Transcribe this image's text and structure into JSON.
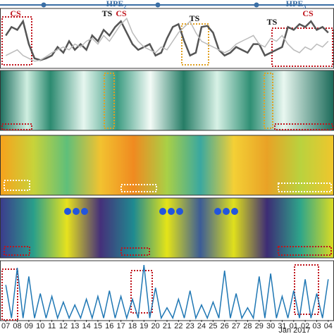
{
  "chart_data": [
    {
      "type": "line",
      "xlim": [
        -0.5,
        28.5
      ],
      "ylim": [
        0,
        100
      ],
      "annotations": [
        "CS",
        "TS",
        "CS",
        "TS",
        "TS",
        "CS"
      ],
      "periods": [
        {
          "text": "HPE",
          "sub": "2"
        },
        {
          "text": "HPE",
          "sub": "3"
        }
      ],
      "x": [
        0,
        0.5,
        1,
        1.5,
        2,
        2.5,
        3,
        3.5,
        4,
        4.5,
        5,
        5.5,
        6,
        6.5,
        7,
        7.5,
        8,
        8.5,
        9,
        9.5,
        10,
        10.5,
        11,
        11.5,
        12,
        12.5,
        13,
        13.5,
        14,
        14.5,
        15,
        15.5,
        16,
        16.5,
        17,
        17.5,
        18,
        18.5,
        19,
        19.5,
        20,
        20.5,
        21,
        21.5,
        22,
        22.5,
        23,
        23.5,
        24,
        24.5,
        25,
        25.5,
        26,
        26.5,
        27,
        27.5,
        28
      ],
      "series": [
        {
          "color": "#555555",
          "values": [
            55,
            70,
            65,
            80,
            40,
            15,
            12,
            15,
            20,
            35,
            25,
            45,
            30,
            40,
            30,
            55,
            45,
            65,
            55,
            70,
            80,
            60,
            40,
            30,
            35,
            40,
            20,
            25,
            50,
            70,
            75,
            45,
            20,
            25,
            70,
            72,
            60,
            30,
            20,
            25,
            35,
            30,
            25,
            40,
            40,
            20,
            25,
            30,
            35,
            70,
            65,
            75,
            70,
            80,
            65,
            70,
            60
          ]
        },
        {
          "color": "#bbbbbb",
          "values": [
            20,
            25,
            30,
            20,
            15,
            10,
            12,
            18,
            25,
            30,
            35,
            30,
            40,
            35,
            45,
            50,
            40,
            55,
            45,
            60,
            75,
            85,
            60,
            45,
            35,
            30,
            25,
            35,
            30,
            45,
            60,
            70,
            80,
            60,
            45,
            40,
            35,
            30,
            25,
            30,
            40,
            45,
            50,
            55,
            40,
            35,
            50,
            45,
            55,
            40,
            30,
            25,
            35,
            30,
            40,
            35,
            45
          ]
        }
      ]
    },
    {
      "type": "line",
      "xlim": [
        -0.5,
        28.5
      ],
      "ylim": [
        0,
        100
      ],
      "xticks": [
        {
          "value": 0,
          "label": "07"
        },
        {
          "value": 1,
          "label": "08"
        },
        {
          "value": 2,
          "label": "09"
        },
        {
          "value": 3,
          "label": "10"
        },
        {
          "value": 4,
          "label": "11"
        },
        {
          "value": 5,
          "label": "12"
        },
        {
          "value": 6,
          "label": "13"
        },
        {
          "value": 7,
          "label": "14"
        },
        {
          "value": 8,
          "label": "15"
        },
        {
          "value": 9,
          "label": "16"
        },
        {
          "value": 10,
          "label": "17"
        },
        {
          "value": 11,
          "label": "18"
        },
        {
          "value": 12,
          "label": "19"
        },
        {
          "value": 13,
          "label": "20"
        },
        {
          "value": 14,
          "label": "21"
        },
        {
          "value": 15,
          "label": "22"
        },
        {
          "value": 16,
          "label": "23"
        },
        {
          "value": 17,
          "label": "24"
        },
        {
          "value": 18,
          "label": "25"
        },
        {
          "value": 19,
          "label": "26"
        },
        {
          "value": 20,
          "label": "27"
        },
        {
          "value": 21,
          "label": "28"
        },
        {
          "value": 22,
          "label": "29"
        },
        {
          "value": 23,
          "label": "30"
        },
        {
          "value": 24,
          "label": "31"
        },
        {
          "value": 25,
          "label": "01"
        },
        {
          "value": 26,
          "label": "02"
        },
        {
          "value": 27,
          "label": "03"
        },
        {
          "value": 28,
          "label": "04"
        }
      ],
      "xlabel": "Jan 2017",
      "x": [
        0,
        0.5,
        1,
        1.5,
        2,
        2.5,
        3,
        3.5,
        4,
        4.5,
        5,
        5.5,
        6,
        6.5,
        7,
        7.5,
        8,
        8.5,
        9,
        9.5,
        10,
        10.5,
        11,
        11.5,
        12,
        12.5,
        13,
        13.5,
        14,
        14.5,
        15,
        15.5,
        16,
        16.5,
        17,
        17.5,
        18,
        18.5,
        19,
        19.5,
        20,
        20.5,
        21,
        21.5,
        22,
        22.5,
        23,
        23.5,
        24,
        24.5,
        25,
        25.5,
        26,
        26.5,
        27,
        27.5,
        28
      ],
      "series": [
        {
          "color": "#1f77b4",
          "values": [
            60,
            2,
            90,
            2,
            75,
            2,
            45,
            2,
            40,
            2,
            30,
            2,
            25,
            2,
            35,
            2,
            40,
            2,
            50,
            2,
            40,
            2,
            35,
            2,
            95,
            2,
            55,
            2,
            20,
            2,
            35,
            2,
            50,
            2,
            25,
            2,
            30,
            2,
            85,
            2,
            45,
            2,
            20,
            2,
            75,
            2,
            80,
            2,
            40,
            2,
            50,
            2,
            70,
            2,
            45,
            2,
            70
          ]
        }
      ]
    }
  ]
}
